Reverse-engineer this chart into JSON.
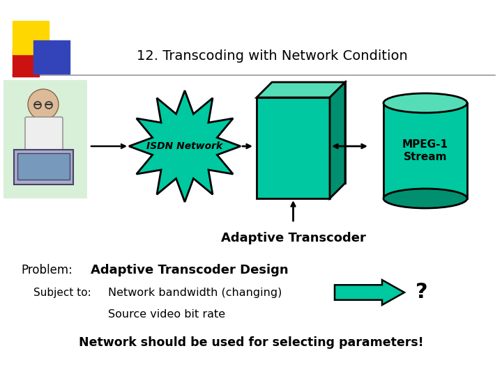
{
  "title": "12. Transcoding with Network Condition",
  "bg_color": "#ffffff",
  "teal_color": "#00C8A0",
  "teal_dark": "#009070",
  "teal_light": "#55DDB8",
  "isdn_label": "ISDN Network",
  "mpeg_label": "MPEG-1\nStream",
  "adaptive_label": "Adaptive Transcoder",
  "problem_label": "Problem:",
  "problem_detail": "Adaptive Transcoder Design",
  "subject_label": "Subject to:",
  "subject_detail1": "Network bandwidth (changing)",
  "subject_detail2": "Source video bit rate",
  "bottom_text": "Network should be used for selecting parameters!",
  "question_mark": "?",
  "yellow_color": "#FFD700",
  "blue_color": "#3344BB",
  "red_color": "#CC1111",
  "person_bg": "#d8f0d8"
}
